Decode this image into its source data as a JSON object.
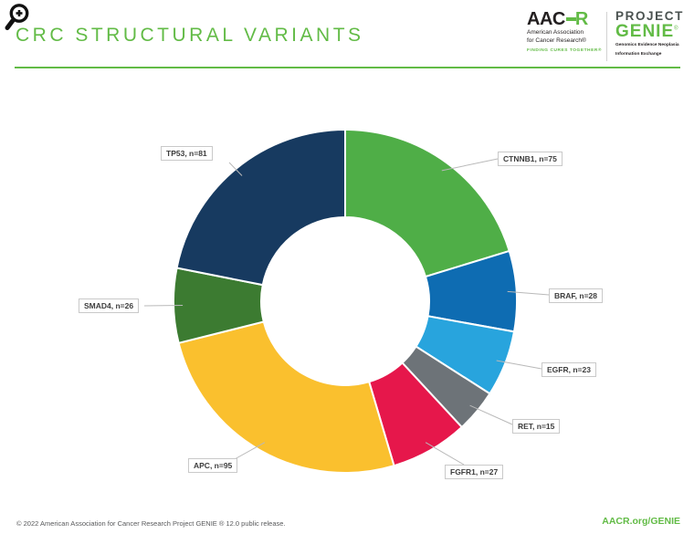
{
  "header": {
    "title": "CRC STRUCTURAL VARIANTS",
    "title_color": "#62bb46",
    "aacr_logo": {
      "text_aac": "AAC",
      "text_r": "R",
      "line1": "American Association",
      "line2": "for Cancer Research®",
      "tagline": "FINDING CURES TOGETHER®"
    },
    "genie_logo": {
      "project": "PROJECT",
      "genie": "GENIE",
      "registered": "®",
      "sub_line1": "Genomics Evidence Neoplasia",
      "sub_line2": "Information Exchange"
    }
  },
  "chart_data": {
    "type": "pie",
    "subtype": "donut",
    "title": "CRC STRUCTURAL VARIANTS",
    "start_angle_deg": 0,
    "direction": "clockwise",
    "inner_radius_ratio": 0.49,
    "gap_color": "#ffffff",
    "total": 370,
    "segments": [
      {
        "gene": "CTNNB1",
        "n": 75,
        "label": "CTNNB1, n=75",
        "color": "#4fae47"
      },
      {
        "gene": "BRAF",
        "n": 28,
        "label": "BRAF, n=28",
        "color": "#0e6cb2"
      },
      {
        "gene": "EGFR",
        "n": 23,
        "label": "EGFR, n=23",
        "color": "#28a4dd"
      },
      {
        "gene": "RET",
        "n": 15,
        "label": "RET, n=15",
        "color": "#6d7378"
      },
      {
        "gene": "FGFR1",
        "n": 27,
        "label": "FGFR1, n=27",
        "color": "#e6174b"
      },
      {
        "gene": "APC",
        "n": 95,
        "label": "APC, n=95",
        "color": "#fac02e"
      },
      {
        "gene": "SMAD4",
        "n": 26,
        "label": "SMAD4, n=26",
        "color": "#3c7b31"
      },
      {
        "gene": "TP53",
        "n": 81,
        "label": "TP53, n=81",
        "color": "#173a60"
      }
    ]
  },
  "footer": {
    "copyright": "© 2022 American Association for Cancer Research Project GENIE ® 12.0 public release.",
    "link": "AACR.org/GENIE"
  }
}
